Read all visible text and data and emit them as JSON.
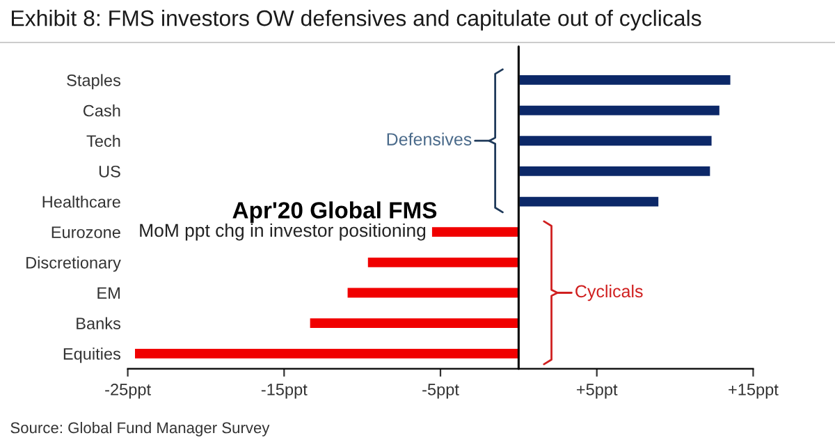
{
  "chart_data": {
    "type": "bar",
    "orientation": "horizontal",
    "title": "Exhibit 8: FMS investors OW defensives and capitulate out of cyclicals",
    "categories": [
      "Staples",
      "Cash",
      "Tech",
      "US",
      "Healthcare",
      "Eurozone",
      "Discretionary",
      "EM",
      "Banks",
      "Equities"
    ],
    "values": [
      13.6,
      12.9,
      12.4,
      12.3,
      9.0,
      -5.6,
      -9.7,
      -11.0,
      -13.4,
      -24.6
    ],
    "colors": [
      "#0c2868",
      "#0c2868",
      "#0c2868",
      "#0c2868",
      "#0c2868",
      "#f00000",
      "#f00000",
      "#f00000",
      "#f00000",
      "#f00000"
    ],
    "xlim": [
      -25,
      15
    ],
    "xticks": [
      {
        "value": -25,
        "label": "-25ppt"
      },
      {
        "value": -15,
        "label": "-15ppt"
      },
      {
        "value": -5,
        "label": "-5ppt"
      },
      {
        "value": 5,
        "label": "+5ppt"
      },
      {
        "value": 15,
        "label": "+15ppt"
      }
    ],
    "ref_lines": [
      {
        "axis": "x",
        "value": 0,
        "color": "#000000"
      }
    ],
    "annotations": [
      "Apr'20 Global FMS",
      "MoM ppt chg in investor positioning",
      "Defensives",
      "Cyclicals",
      "Source: Global Fund Manager Survey"
    ],
    "grid": false,
    "legend": false
  }
}
